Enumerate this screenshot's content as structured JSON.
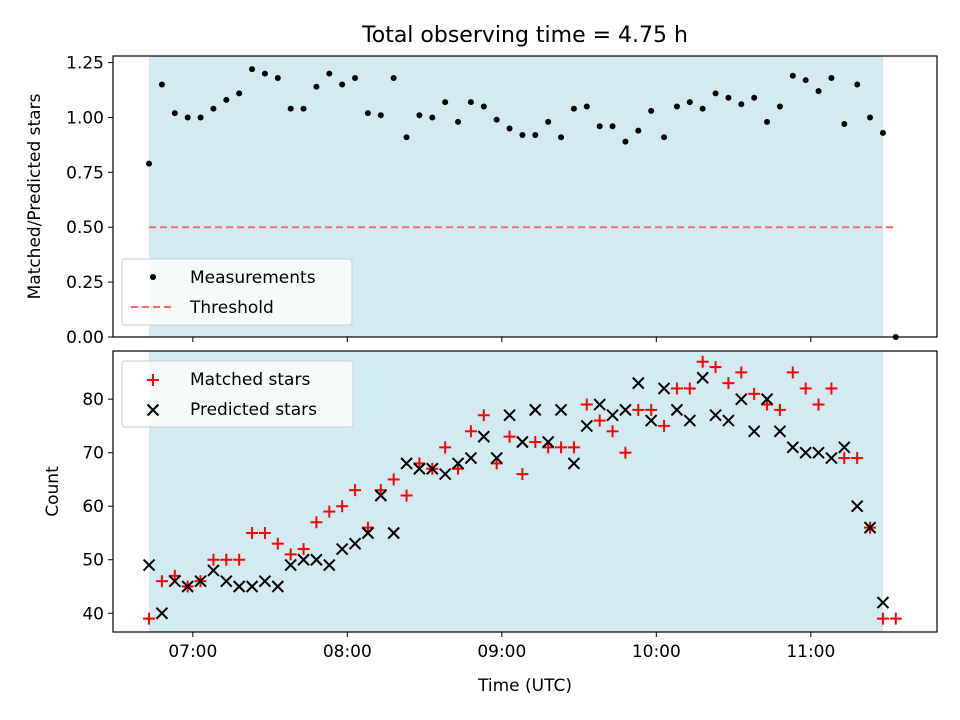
{
  "figure": {
    "title": "Total observing time = 4.75 h",
    "xlabel": "Time (UTC)",
    "x_tick_labels": [
      "07:00",
      "08:00",
      "09:00",
      "10:00",
      "11:00"
    ],
    "observing_window": {
      "start": "06:43",
      "end": "11:28",
      "color": "#add8e6"
    }
  },
  "chart_data": [
    {
      "type": "scatter",
      "ylabel": "Matched/Predicted stars",
      "ylim": [
        0,
        1.28
      ],
      "yticks": [
        0.0,
        0.25,
        0.5,
        0.75,
        1.0,
        1.25
      ],
      "ytick_labels": [
        "0.00",
        "0.25",
        "0.50",
        "0.75",
        "1.00",
        "1.25"
      ],
      "legend": {
        "placement": "lower-left",
        "entries": [
          "Measurements",
          "Threshold"
        ]
      },
      "series": [
        {
          "name": "Measurements",
          "color": "#000000",
          "marker": "dot",
          "x": [
            "06:43",
            "06:48",
            "06:53",
            "06:58",
            "07:03",
            "07:08",
            "07:13",
            "07:18",
            "07:23",
            "07:28",
            "07:33",
            "07:38",
            "07:43",
            "07:48",
            "07:53",
            "07:58",
            "08:03",
            "08:08",
            "08:13",
            "08:18",
            "08:23",
            "08:28",
            "08:33",
            "08:38",
            "08:43",
            "08:48",
            "08:53",
            "08:58",
            "09:03",
            "09:08",
            "09:13",
            "09:18",
            "09:23",
            "09:28",
            "09:33",
            "09:38",
            "09:43",
            "09:48",
            "09:53",
            "09:58",
            "10:03",
            "10:08",
            "10:13",
            "10:18",
            "10:23",
            "10:28",
            "10:33",
            "10:38",
            "10:43",
            "10:48",
            "10:53",
            "10:58",
            "11:03",
            "11:08",
            "11:13",
            "11:18",
            "11:23",
            "11:28",
            "11:33"
          ],
          "y": [
            0.79,
            1.15,
            1.02,
            1.0,
            1.0,
            1.04,
            1.08,
            1.11,
            1.22,
            1.2,
            1.18,
            1.04,
            1.04,
            1.14,
            1.2,
            1.15,
            1.18,
            1.02,
            1.01,
            1.18,
            0.91,
            1.01,
            1.0,
            1.07,
            0.98,
            1.07,
            1.05,
            0.99,
            0.95,
            0.92,
            0.92,
            0.98,
            0.91,
            1.04,
            1.05,
            0.96,
            0.96,
            0.89,
            0.94,
            1.03,
            0.91,
            1.05,
            1.07,
            1.04,
            1.11,
            1.09,
            1.06,
            1.09,
            0.98,
            1.05,
            1.19,
            1.17,
            1.12,
            1.18,
            0.97,
            1.15,
            1.0,
            0.93,
            0.0
          ]
        },
        {
          "name": "Threshold",
          "color": "#ff6666",
          "style": "dashed",
          "x": [
            "06:43",
            "11:33"
          ],
          "y": [
            0.5,
            0.5
          ]
        }
      ]
    },
    {
      "type": "scatter",
      "ylabel": "Count",
      "ylim": [
        36.5,
        89
      ],
      "yticks": [
        40,
        50,
        60,
        70,
        80
      ],
      "ytick_labels": [
        "40",
        "50",
        "60",
        "70",
        "80"
      ],
      "legend": {
        "placement": "upper-left",
        "entries": [
          "Matched stars",
          "Predicted stars"
        ]
      },
      "series": [
        {
          "name": "Matched stars",
          "color": "#ff0000",
          "marker": "plus",
          "x": [
            "06:43",
            "06:48",
            "06:53",
            "06:58",
            "07:03",
            "07:08",
            "07:13",
            "07:18",
            "07:23",
            "07:28",
            "07:33",
            "07:38",
            "07:43",
            "07:48",
            "07:53",
            "07:58",
            "08:03",
            "08:08",
            "08:13",
            "08:18",
            "08:23",
            "08:28",
            "08:33",
            "08:38",
            "08:43",
            "08:48",
            "08:53",
            "08:58",
            "09:03",
            "09:08",
            "09:13",
            "09:18",
            "09:23",
            "09:28",
            "09:33",
            "09:38",
            "09:43",
            "09:48",
            "09:53",
            "09:58",
            "10:03",
            "10:08",
            "10:13",
            "10:18",
            "10:23",
            "10:28",
            "10:33",
            "10:38",
            "10:43",
            "10:48",
            "10:53",
            "10:58",
            "11:03",
            "11:08",
            "11:13",
            "11:18",
            "11:23",
            "11:28",
            "11:33"
          ],
          "y": [
            39,
            46,
            47,
            45,
            46,
            50,
            50,
            50,
            55,
            55,
            53,
            51,
            52,
            57,
            59,
            60,
            63,
            56,
            63,
            65,
            62,
            68,
            67,
            71,
            67,
            74,
            77,
            68,
            73,
            66,
            72,
            71,
            71,
            71,
            79,
            76,
            74,
            70,
            78,
            78,
            75,
            82,
            82,
            87,
            86,
            83,
            85,
            81,
            79,
            78,
            85,
            82,
            79,
            82,
            69,
            69,
            56,
            39,
            39
          ]
        },
        {
          "name": "Predicted stars",
          "color": "#000000",
          "marker": "x",
          "x": [
            "06:43",
            "06:48",
            "06:53",
            "06:58",
            "07:03",
            "07:08",
            "07:13",
            "07:18",
            "07:23",
            "07:28",
            "07:33",
            "07:38",
            "07:43",
            "07:48",
            "07:53",
            "07:58",
            "08:03",
            "08:08",
            "08:13",
            "08:18",
            "08:23",
            "08:28",
            "08:33",
            "08:38",
            "08:43",
            "08:48",
            "08:53",
            "08:58",
            "09:03",
            "09:08",
            "09:13",
            "09:18",
            "09:23",
            "09:28",
            "09:33",
            "09:38",
            "09:43",
            "09:48",
            "09:53",
            "09:58",
            "10:03",
            "10:08",
            "10:13",
            "10:18",
            "10:23",
            "10:28",
            "10:33",
            "10:38",
            "10:43",
            "10:48",
            "10:53",
            "10:58",
            "11:03",
            "11:08",
            "11:13",
            "11:18",
            "11:23",
            "11:28"
          ],
          "y": [
            49,
            40,
            46,
            45,
            46,
            48,
            46,
            45,
            45,
            46,
            45,
            49,
            50,
            50,
            49,
            52,
            53,
            55,
            62,
            55,
            68,
            67,
            67,
            66,
            68,
            69,
            73,
            69,
            77,
            72,
            78,
            72,
            78,
            68,
            75,
            79,
            77,
            78,
            83,
            76,
            82,
            78,
            76,
            84,
            77,
            76,
            80,
            74,
            80,
            74,
            71,
            70,
            70,
            69,
            71,
            60,
            56,
            42
          ]
        }
      ]
    }
  ]
}
